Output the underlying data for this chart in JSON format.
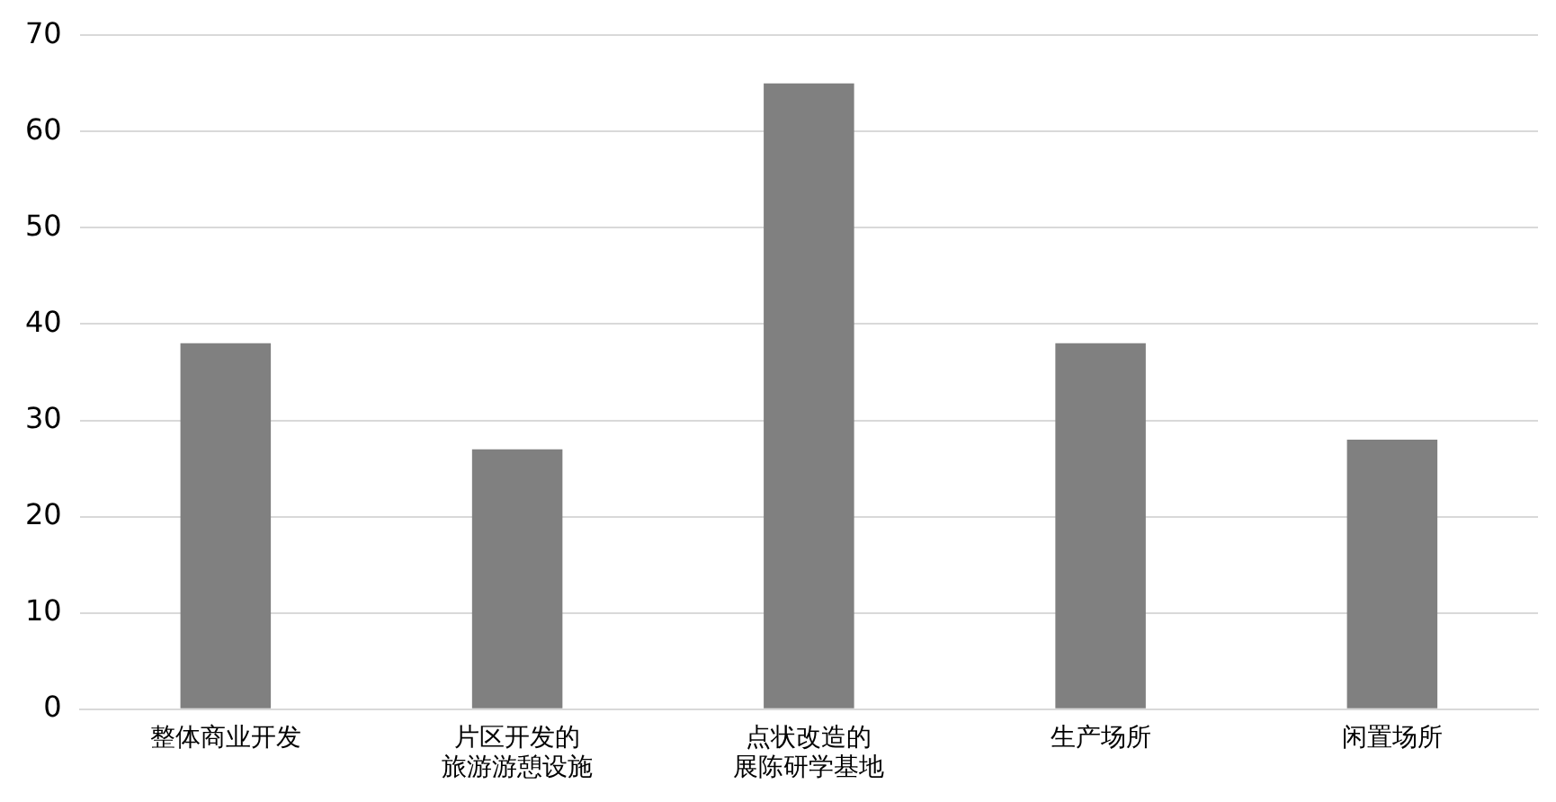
{
  "chart_data": {
    "type": "bar",
    "categories": [
      "整体商业开发",
      "片区开发的旅游游憩设施",
      "点状改造的展陈研学基地",
      "生产场所",
      "闲置场所"
    ],
    "values": [
      38,
      27,
      65,
      38,
      28
    ],
    "color": "#808080",
    "ylim": [
      0,
      70
    ],
    "yticks": [
      0,
      10,
      20,
      30,
      40,
      50,
      60,
      70
    ],
    "grid": "y",
    "legend": false
  }
}
